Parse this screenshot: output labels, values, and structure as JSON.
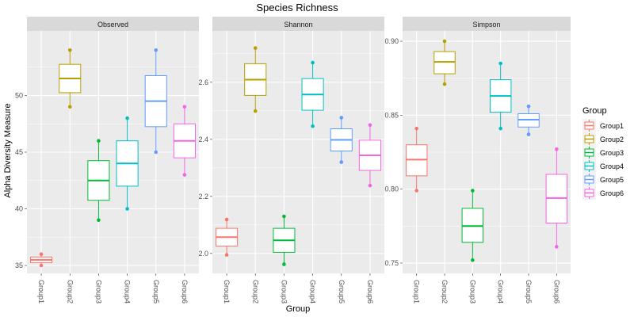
{
  "chart_data": {
    "type": "box",
    "title": "Species Richness",
    "xlabel": "Group",
    "ylabel": "Alpha Diversity Measure",
    "categories": [
      "Group1",
      "Group2",
      "Group3",
      "Group4",
      "Group5",
      "Group6"
    ],
    "legend": {
      "title": "Group",
      "placement": "right",
      "entries": [
        "Group1",
        "Group2",
        "Group3",
        "Group4",
        "Group5",
        "Group6"
      ]
    },
    "colors": [
      "#F8766D",
      "#B79F00",
      "#00BA38",
      "#00BFC4",
      "#619CFF",
      "#F564E3"
    ],
    "grid": true,
    "facets": [
      {
        "name": "Observed",
        "ylim": [
          34.3,
          55.7
        ],
        "yticks": [
          35,
          40,
          45,
          50
        ],
        "tick_labels": [
          "35",
          "40",
          "45",
          "50"
        ],
        "boxes": [
          {
            "group": "Group1",
            "min": 35.0,
            "q1": 35.25,
            "median": 35.5,
            "q3": 35.75,
            "max": 36.0,
            "points": [
              35.0,
              36.0
            ]
          },
          {
            "group": "Group2",
            "min": 49.0,
            "q1": 50.25,
            "median": 51.5,
            "q3": 52.75,
            "max": 54.0,
            "points": [
              49.0,
              54.0
            ]
          },
          {
            "group": "Group3",
            "min": 39.0,
            "q1": 40.75,
            "median": 42.5,
            "q3": 44.25,
            "max": 46.0,
            "points": [
              39.0,
              46.0
            ]
          },
          {
            "group": "Group4",
            "min": 40.0,
            "q1": 42.0,
            "median": 44.0,
            "q3": 46.0,
            "max": 48.0,
            "points": [
              40.0,
              48.0
            ]
          },
          {
            "group": "Group5",
            "min": 45.0,
            "q1": 47.25,
            "median": 49.5,
            "q3": 51.75,
            "max": 54.0,
            "points": [
              45.0,
              54.0
            ]
          },
          {
            "group": "Group6",
            "min": 43.0,
            "q1": 44.5,
            "median": 46.0,
            "q3": 47.5,
            "max": 49.0,
            "points": [
              43.0,
              49.0
            ]
          }
        ]
      },
      {
        "name": "Shannon",
        "ylim": [
          1.93,
          2.78
        ],
        "yticks": [
          2.0,
          2.2,
          2.4,
          2.6
        ],
        "tick_labels": [
          "2.0",
          "2.2",
          "2.4",
          "2.6"
        ],
        "boxes": [
          {
            "group": "Group1",
            "min": 1.995,
            "q1": 2.026,
            "median": 2.057,
            "q3": 2.088,
            "max": 2.119,
            "points": [
              1.995,
              2.119
            ]
          },
          {
            "group": "Group2",
            "min": 2.499,
            "q1": 2.554,
            "median": 2.609,
            "q3": 2.665,
            "max": 2.72,
            "points": [
              2.499,
              2.72
            ]
          },
          {
            "group": "Group3",
            "min": 1.962,
            "q1": 2.004,
            "median": 2.046,
            "q3": 2.088,
            "max": 2.13,
            "points": [
              1.962,
              2.13
            ]
          },
          {
            "group": "Group4",
            "min": 2.446,
            "q1": 2.502,
            "median": 2.557,
            "q3": 2.613,
            "max": 2.669,
            "points": [
              2.446,
              2.669
            ]
          },
          {
            "group": "Group5",
            "min": 2.32,
            "q1": 2.359,
            "median": 2.398,
            "q3": 2.437,
            "max": 2.476,
            "points": [
              2.32,
              2.476
            ]
          },
          {
            "group": "Group6",
            "min": 2.238,
            "q1": 2.291,
            "median": 2.344,
            "q3": 2.397,
            "max": 2.45,
            "points": [
              2.238,
              2.45
            ]
          }
        ]
      },
      {
        "name": "Simpson",
        "ylim": [
          0.743,
          0.907
        ],
        "yticks": [
          0.75,
          0.8,
          0.85,
          0.9
        ],
        "tick_labels": [
          "0.75",
          "0.80",
          "0.85",
          "0.90"
        ],
        "boxes": [
          {
            "group": "Group1",
            "min": 0.799,
            "q1": 0.809,
            "median": 0.82,
            "q3": 0.83,
            "max": 0.841,
            "points": [
              0.799,
              0.841
            ]
          },
          {
            "group": "Group2",
            "min": 0.871,
            "q1": 0.878,
            "median": 0.886,
            "q3": 0.893,
            "max": 0.9,
            "points": [
              0.871,
              0.9
            ]
          },
          {
            "group": "Group3",
            "min": 0.752,
            "q1": 0.764,
            "median": 0.775,
            "q3": 0.787,
            "max": 0.799,
            "points": [
              0.752,
              0.799
            ]
          },
          {
            "group": "Group4",
            "min": 0.841,
            "q1": 0.852,
            "median": 0.863,
            "q3": 0.874,
            "max": 0.885,
            "points": [
              0.841,
              0.885
            ]
          },
          {
            "group": "Group5",
            "min": 0.837,
            "q1": 0.842,
            "median": 0.847,
            "q3": 0.851,
            "max": 0.856,
            "points": [
              0.837,
              0.856
            ]
          },
          {
            "group": "Group6",
            "min": 0.761,
            "q1": 0.777,
            "median": 0.794,
            "q3": 0.81,
            "max": 0.827,
            "points": [
              0.761,
              0.827
            ]
          }
        ]
      }
    ]
  }
}
